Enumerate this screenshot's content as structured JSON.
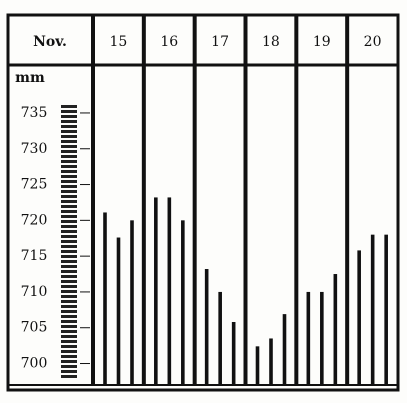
{
  "chart_data": {
    "type": "bar",
    "corner_label": "Nov.",
    "axis_unit": "mm",
    "categories": [
      "15",
      "16",
      "17",
      "18",
      "19",
      "20"
    ],
    "values": [
      [
        721.1,
        717.6,
        720
      ],
      [
        723.2,
        723.2,
        720
      ],
      [
        713.2,
        710,
        705.8
      ],
      [
        702.4,
        703.5,
        706.9
      ],
      [
        710,
        710,
        712.5
      ],
      [
        715.8,
        718,
        718
      ]
    ],
    "color": "#111111",
    "ylim": [
      697,
      741
    ],
    "yticks": [
      700,
      705,
      710,
      715,
      720,
      725,
      730,
      735
    ]
  }
}
